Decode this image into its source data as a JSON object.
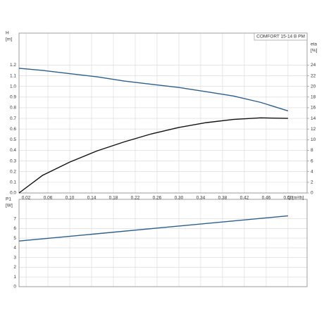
{
  "chart_data": [
    {
      "type": "line",
      "title": "COMFORT  15-14 B PM",
      "ylabel": "H",
      "yunit": "[m]",
      "y2label": "eta",
      "y2unit": "[%]",
      "xlabel": "Q [m³/h]",
      "x": [
        0.007,
        0.05,
        0.1,
        0.15,
        0.2,
        0.25,
        0.3,
        0.35,
        0.4,
        0.45,
        0.5
      ],
      "series": [
        {
          "color": "#2b5f8e",
          "axis": "y",
          "values": [
            1.17,
            1.15,
            1.12,
            1.09,
            1.05,
            1.02,
            0.99,
            0.95,
            0.91,
            0.85,
            0.77
          ]
        },
        {
          "color": "#111111",
          "axis": "y2",
          "values": [
            0,
            3.3,
            5.8,
            7.9,
            9.6,
            11.1,
            12.3,
            13.2,
            13.8,
            14.1,
            14.0
          ]
        }
      ],
      "xlim": [
        0.007,
        0.535
      ],
      "xticks": [
        0.02,
        0.06,
        {
          "value": 0.1,
          "label": "0.10"
        },
        0.14,
        0.18,
        0.22,
        0.26,
        {
          "value": 0.3,
          "label": "0.30"
        },
        0.34,
        0.38,
        0.42,
        0.46,
        {
          "value": 0.5,
          "label": "0.50"
        }
      ],
      "ylim": [
        0,
        1.5
      ],
      "yticks": [
        {
          "value": 0,
          "label": "0.0"
        },
        0.1,
        0.2,
        0.3,
        0.4,
        0.5,
        0.6,
        0.7,
        0.8,
        0.9,
        {
          "value": 1,
          "label": "1.0"
        },
        1.1,
        1.2
      ],
      "y2lim": [
        0,
        30
      ],
      "y2ticks": [
        0,
        2,
        4,
        6,
        8,
        10,
        12,
        14,
        16,
        18,
        20,
        22,
        24
      ],
      "grid": true
    },
    {
      "type": "line",
      "ylabel": "P1",
      "yunit": "[W]",
      "x": [
        0.007,
        0.5
      ],
      "series": [
        {
          "color": "#2b5f8e",
          "axis": "y",
          "values": [
            4.7,
            7.3
          ]
        }
      ],
      "xlim": [
        0.007,
        0.535
      ],
      "xticks": [
        0.02,
        0.06,
        0.1,
        0.14,
        0.18,
        0.22,
        0.26,
        0.3,
        0.34,
        0.38,
        0.42,
        0.46,
        0.5
      ],
      "ylim": [
        0,
        9
      ],
      "yticks": [
        0,
        1,
        2,
        3,
        4,
        5,
        6,
        7
      ],
      "grid": true
    }
  ]
}
